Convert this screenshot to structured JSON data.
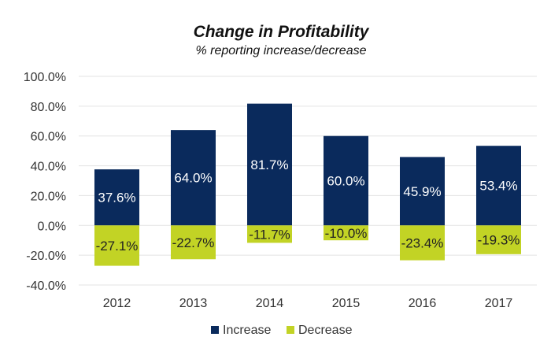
{
  "chart_data": {
    "type": "bar",
    "title": "Change in Profitability",
    "subtitle": "% reporting increase/decrease",
    "categories": [
      "2012",
      "2013",
      "2014",
      "2015",
      "2016",
      "2017"
    ],
    "series": [
      {
        "name": "Increase",
        "color": "#0a2a5c",
        "values": [
          37.6,
          64.0,
          81.7,
          60.0,
          45.9,
          53.4
        ],
        "labels": [
          "37.6%",
          "64.0%",
          "81.7%",
          "60.0%",
          "45.9%",
          "53.4%"
        ],
        "label_color": "#ffffff"
      },
      {
        "name": "Decrease",
        "color": "#c2d325",
        "values": [
          -27.1,
          -22.7,
          -11.7,
          -10.0,
          -23.4,
          -19.3
        ],
        "labels": [
          "-27.1%",
          "-22.7%",
          "-11.7%",
          "-10.0%",
          "-23.4%",
          "-19.3%"
        ],
        "label_color": "#222222"
      }
    ],
    "ylim": [
      -40,
      100
    ],
    "yticks": [
      "-40.0%",
      "-20.0%",
      "0.0%",
      "20.0%",
      "40.0%",
      "60.0%",
      "80.0%",
      "100.0%"
    ],
    "ytick_values": [
      -40,
      -20,
      0,
      20,
      40,
      60,
      80,
      100
    ],
    "grid": true,
    "legend_position": "bottom"
  }
}
